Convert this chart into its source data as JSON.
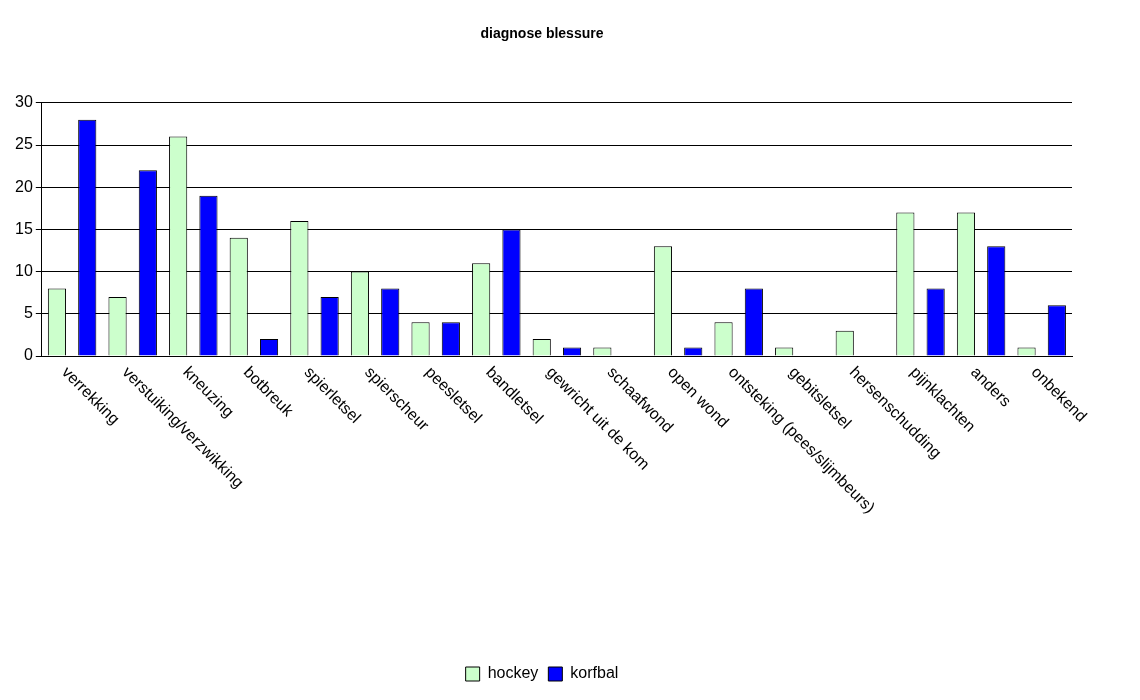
{
  "chart_data": {
    "type": "bar",
    "title": "diagnose blessure",
    "categories": [
      "verrekking",
      "verstuiking/verzwikking",
      "kneuzing",
      "botbreuk",
      "spierletsel",
      "spierscheur",
      "peesletsel",
      "bandletsel",
      "gewricht uit de kom",
      "schaafwond",
      "open wond",
      "ontsteking (pees/slijmbeurs)",
      "gebitsletsel",
      "hersenschudding",
      "pijnklachten",
      "anders",
      "onbekend"
    ],
    "series": [
      {
        "name": "hockey",
        "color": "#ccffcc",
        "values": [
          8,
          7,
          26,
          14,
          16,
          10,
          4,
          11,
          2,
          1,
          13,
          4,
          1,
          3,
          17,
          17,
          1
        ]
      },
      {
        "name": "korfbal",
        "color": "#0000ff",
        "values": [
          28,
          22,
          19,
          2,
          7,
          8,
          4,
          15,
          1,
          0,
          1,
          8,
          0,
          0,
          8,
          13,
          6
        ]
      }
    ],
    "ylim": [
      0,
      30
    ],
    "yticks": [
      0,
      5,
      10,
      15,
      20,
      25,
      30
    ],
    "grid": "y",
    "legend": "bottom"
  }
}
